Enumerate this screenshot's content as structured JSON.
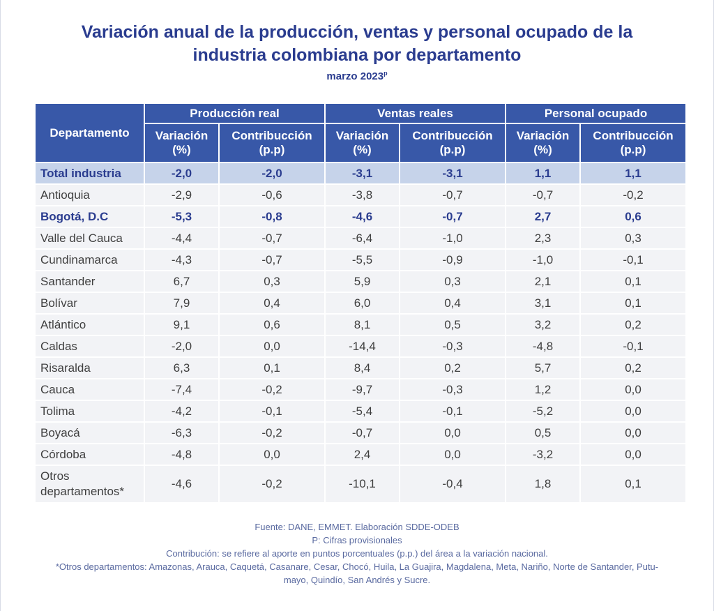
{
  "header": {
    "title_line1": "Variación anual de la producción, ventas y personal ocupado de la",
    "title_line2": "industria colombiana por departamento",
    "period": "marzo 2023",
    "period_mark": "p"
  },
  "table": {
    "dept_header": "Departamento",
    "groups": [
      "Producción real",
      "Ventas reales",
      "Personal ocupado"
    ],
    "sub_headers": {
      "variation_l1": "Variación",
      "variation_l2": "(%)",
      "contribution_l1": "Contribucción",
      "contribution_l2": "(p.p)"
    },
    "total": {
      "name": "Total industria",
      "values": [
        "-2,0",
        "-2,0",
        "-3,1",
        "-3,1",
        "1,1",
        "1,1"
      ]
    },
    "rows": [
      {
        "name": "Antioquia",
        "values": [
          "-2,9",
          "-0,6",
          "-3,8",
          "-0,7",
          "-0,7",
          "-0,2"
        ]
      },
      {
        "name": "Bogotá, D.C",
        "values": [
          "-5,3",
          "-0,8",
          "-4,6",
          "-0,7",
          "2,7",
          "0,6"
        ]
      },
      {
        "name": "Valle del Cauca",
        "values": [
          "-4,4",
          "-0,7",
          "-6,4",
          "-1,0",
          "2,3",
          "0,3"
        ]
      },
      {
        "name": "Cundinamarca",
        "values": [
          "-4,3",
          "-0,7",
          "-5,5",
          "-0,9",
          "-1,0",
          "-0,1"
        ]
      },
      {
        "name": "Santander",
        "values": [
          "6,7",
          "0,3",
          "5,9",
          "0,3",
          "2,1",
          "0,1"
        ]
      },
      {
        "name": "Bolívar",
        "values": [
          "7,9",
          "0,4",
          "6,0",
          "0,4",
          "3,1",
          "0,1"
        ]
      },
      {
        "name": "Atlántico",
        "values": [
          "9,1",
          "0,6",
          "8,1",
          "0,5",
          "3,2",
          "0,2"
        ]
      },
      {
        "name": "Caldas",
        "values": [
          "-2,0",
          "0,0",
          "-14,4",
          "-0,3",
          "-4,8",
          "-0,1"
        ]
      },
      {
        "name": "Risaralda",
        "values": [
          "6,3",
          "0,1",
          "8,4",
          "0,2",
          "5,7",
          "0,2"
        ]
      },
      {
        "name": "Cauca",
        "values": [
          "-7,4",
          "-0,2",
          "-9,7",
          "-0,3",
          "1,2",
          "0,0"
        ]
      },
      {
        "name": "Tolima",
        "values": [
          "-4,2",
          "-0,1",
          "-5,4",
          "-0,1",
          "-5,2",
          "0,0"
        ]
      },
      {
        "name": "Boyacá",
        "values": [
          "-6,3",
          "-0,2",
          "-0,7",
          "0,0",
          "0,5",
          "0,0"
        ]
      },
      {
        "name": "Córdoba",
        "values": [
          "-4,8",
          "0,0",
          "2,4",
          "0,0",
          "-3,2",
          "0,0"
        ]
      }
    ],
    "others": {
      "name_l1": "Otros",
      "name_l2": "departamentos*",
      "values": [
        "-4,6",
        "-0,2",
        "-10,1",
        "-0,4",
        "1,8",
        "0,1"
      ]
    }
  },
  "notes": {
    "source": "Fuente: DANE, EMMET. Elaboración SDDE-ODEB",
    "provisional": "P: Cifras provisionales",
    "contribution": "Contribución: se refiere al aporte en puntos porcentuales (p.p.) del área a la variación nacional.",
    "others_l1": "*Otros departamentos: Amazonas, Arauca, Caquetá, Casanare, Cesar, Chocó, Huila, La Guajira, Magdalena, Meta, Nariño, Norte de Santander, Putu-",
    "others_l2": "mayo, Quindío, San Andrés y Sucre."
  },
  "colors": {
    "title": "#2a3c8f",
    "header_bg": "#3858a8",
    "total_bg": "#c6d3ea",
    "row_bg": "#f2f3f6"
  }
}
